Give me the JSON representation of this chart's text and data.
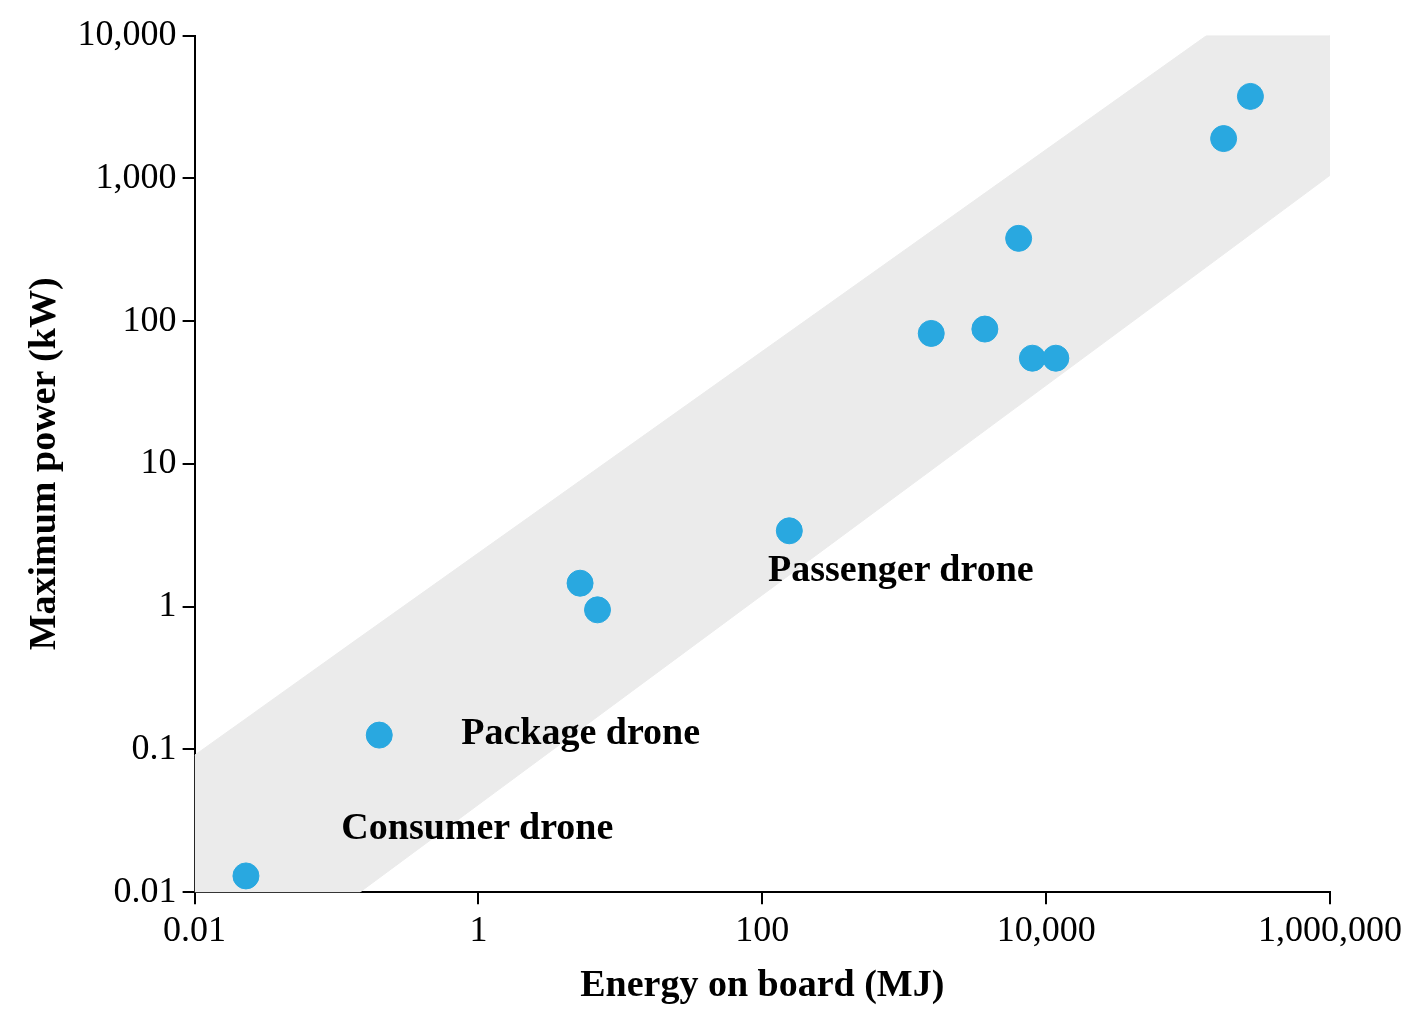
{
  "chart_data": {
    "type": "scatter",
    "xlabel": "Energy on board (MJ)",
    "ylabel": "Maximum power (kW)",
    "log": "xy",
    "grid": false,
    "legend": false,
    "xlim": [
      0.01,
      1000000
    ],
    "xticks": [
      0.01,
      1,
      100,
      {
        "value": 10000,
        "label": "10,000"
      },
      {
        "value": 1000000,
        "label": "1,000,000"
      }
    ],
    "ylim": [
      0.01,
      10000
    ],
    "yticks": [
      0.01,
      0.1,
      1,
      10,
      100,
      {
        "value": 1000,
        "label": "1,000"
      },
      {
        "value": 10000,
        "label": "10,000"
      }
    ],
    "series": [
      {
        "type": "area",
        "color": "#ebebeb",
        "x": [
          0.01,
          0.146,
          135000,
          1000000,
          1000000,
          135000,
          0.146,
          0.01
        ],
        "values": [
          0.091,
          0.61,
          10000,
          10000,
          1050,
          240,
          0.01,
          0.01
        ]
      },
      {
        "color": "#29a8e0",
        "marker": "circle",
        "x": [
          0.023,
          0.2,
          5.2,
          6.9,
          155,
          1550,
          3700,
          6400,
          8000,
          11700,
          178000,
          275000
        ],
        "values": [
          0.013,
          0.126,
          1.46,
          0.95,
          3.4,
          82,
          88,
          380,
          55,
          55,
          1900,
          3750
        ]
      }
    ],
    "annotations": [
      "Consumer drone",
      "Package drone",
      "Passenger drone"
    ]
  }
}
